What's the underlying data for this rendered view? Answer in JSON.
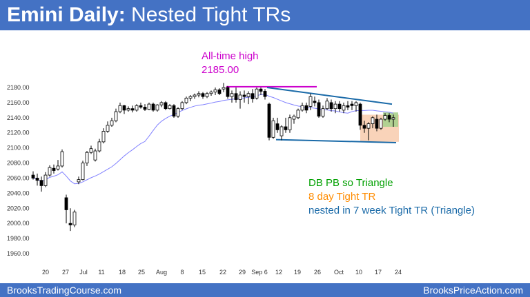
{
  "header": {
    "title_bold": "Emini Daily:",
    "title_rest": " Nested Tight TRs"
  },
  "footer": {
    "left": "BrooksTradingCourse.com",
    "right": "BrooksPriceAction.com"
  },
  "colors": {
    "bar": "#4472c4",
    "up": "#ffffff",
    "down": "#000000",
    "ma": "#8080ff",
    "annot_high": "#cc00cc",
    "annot_db": "#00a000",
    "annot_tr": "#ff8c00",
    "annot_tri": "#1a6aa8",
    "trend": "#1a8ad4"
  },
  "chart_data": {
    "type": "candlestick",
    "title": "Emini Daily: Nested Tight TRs",
    "ylim": [
      1950,
      2190
    ],
    "y_ticks": [
      "2180.00",
      "2160.00",
      "2140.00",
      "2120.00",
      "2100.00",
      "2080.00",
      "2060.00",
      "2040.00",
      "2020.00",
      "2000.00",
      "1980.00",
      "1960.00"
    ],
    "x_ticks": [
      "20",
      "27",
      "Jul",
      "11",
      "18",
      "25",
      "Aug",
      "8",
      "15",
      "22",
      "29",
      "Sep 6",
      "12",
      "19",
      "26",
      "Oct",
      "10",
      "17",
      "24"
    ],
    "annotations": {
      "ath_line1": "All-time high",
      "ath_line2": "2185.00",
      "db": "DB PB so Triangle",
      "tight": "8 day Tight TR",
      "nested": "nested in 7 week Tight TR (Triangle)"
    },
    "ohlc": [
      [
        2064,
        2069,
        2058,
        2060
      ],
      [
        2060,
        2066,
        2050,
        2057
      ],
      [
        2057,
        2062,
        2042,
        2050
      ],
      [
        2050,
        2068,
        2048,
        2064
      ],
      [
        2064,
        2077,
        2062,
        2074
      ],
      [
        2073,
        2078,
        2066,
        2070
      ],
      [
        2072,
        2084,
        2070,
        2076
      ],
      [
        2076,
        2098,
        2074,
        2095
      ],
      [
        2034,
        2038,
        2000,
        2018
      ],
      [
        2000,
        2020,
        1990,
        1998
      ],
      [
        1998,
        2018,
        1995,
        2015
      ],
      [
        2055,
        2062,
        2052,
        2058
      ],
      [
        2058,
        2083,
        2057,
        2080
      ],
      [
        2080,
        2096,
        2076,
        2094
      ],
      [
        2094,
        2103,
        2092,
        2099
      ],
      [
        2084,
        2099,
        2082,
        2096
      ],
      [
        2096,
        2112,
        2094,
        2108
      ],
      [
        2108,
        2126,
        2106,
        2122
      ],
      [
        2122,
        2135,
        2120,
        2130
      ],
      [
        2130,
        2140,
        2128,
        2136
      ],
      [
        2136,
        2152,
        2134,
        2148
      ],
      [
        2148,
        2160,
        2146,
        2156
      ],
      [
        2156,
        2157,
        2145,
        2150
      ],
      [
        2150,
        2155,
        2148,
        2152
      ],
      [
        2152,
        2156,
        2147,
        2150
      ],
      [
        2150,
        2158,
        2148,
        2156
      ],
      [
        2156,
        2160,
        2152,
        2154
      ],
      [
        2154,
        2158,
        2149,
        2151
      ],
      [
        2151,
        2160,
        2150,
        2158
      ],
      [
        2158,
        2160,
        2148,
        2150
      ],
      [
        2150,
        2158,
        2148,
        2157
      ],
      [
        2157,
        2162,
        2154,
        2160
      ],
      [
        2160,
        2162,
        2150,
        2152
      ],
      [
        2152,
        2158,
        2151,
        2156
      ],
      [
        2156,
        2158,
        2140,
        2142
      ],
      [
        2142,
        2154,
        2140,
        2152
      ],
      [
        2152,
        2162,
        2150,
        2160
      ],
      [
        2160,
        2168,
        2158,
        2166
      ],
      [
        2166,
        2170,
        2162,
        2168
      ],
      [
        2168,
        2172,
        2165,
        2170
      ],
      [
        2170,
        2175,
        2167,
        2172
      ],
      [
        2172,
        2174,
        2165,
        2168
      ],
      [
        2168,
        2174,
        2166,
        2172
      ],
      [
        2172,
        2176,
        2169,
        2174
      ],
      [
        2174,
        2180,
        2170,
        2177
      ],
      [
        2177,
        2179,
        2170,
        2172
      ],
      [
        2178,
        2186,
        2174,
        2180
      ],
      [
        2180,
        2182,
        2165,
        2168
      ],
      [
        2168,
        2176,
        2160,
        2172
      ],
      [
        2172,
        2180,
        2160,
        2164
      ],
      [
        2164,
        2175,
        2152,
        2170
      ],
      [
        2170,
        2176,
        2160,
        2168
      ],
      [
        2168,
        2175,
        2158,
        2172
      ],
      [
        2172,
        2178,
        2160,
        2165
      ],
      [
        2166,
        2180,
        2164,
        2178
      ],
      [
        2178,
        2180,
        2170,
        2175
      ],
      [
        2175,
        2178,
        2164,
        2168
      ],
      [
        2158,
        2160,
        2110,
        2114
      ],
      [
        2114,
        2140,
        2112,
        2136
      ],
      [
        2132,
        2140,
        2120,
        2124
      ],
      [
        2116,
        2130,
        2110,
        2128
      ],
      [
        2128,
        2140,
        2120,
        2124
      ],
      [
        2124,
        2144,
        2120,
        2140
      ],
      [
        2138,
        2144,
        2132,
        2142
      ],
      [
        2140,
        2152,
        2138,
        2150
      ],
      [
        2150,
        2160,
        2148,
        2156
      ],
      [
        2156,
        2160,
        2146,
        2150
      ],
      [
        2155,
        2172,
        2150,
        2168
      ],
      [
        2162,
        2168,
        2155,
        2160
      ],
      [
        2160,
        2164,
        2140,
        2142
      ],
      [
        2142,
        2156,
        2140,
        2152
      ],
      [
        2152,
        2166,
        2150,
        2162
      ],
      [
        2160,
        2164,
        2148,
        2152
      ],
      [
        2152,
        2162,
        2146,
        2158
      ],
      [
        2158,
        2162,
        2148,
        2152
      ],
      [
        2150,
        2160,
        2146,
        2156
      ],
      [
        2156,
        2162,
        2150,
        2154
      ],
      [
        2158,
        2162,
        2150,
        2156
      ],
      [
        2156,
        2162,
        2148,
        2160
      ],
      [
        2158,
        2160,
        2124,
        2130
      ],
      [
        2130,
        2136,
        2120,
        2126
      ],
      [
        2126,
        2134,
        2110,
        2132
      ],
      [
        2132,
        2142,
        2126,
        2140
      ],
      [
        2138,
        2144,
        2122,
        2126
      ],
      [
        2126,
        2140,
        2124,
        2138
      ],
      [
        2138,
        2146,
        2136,
        2143
      ],
      [
        2143,
        2146,
        2134,
        2138
      ],
      [
        2138,
        2144,
        2128,
        2140
      ]
    ]
  }
}
